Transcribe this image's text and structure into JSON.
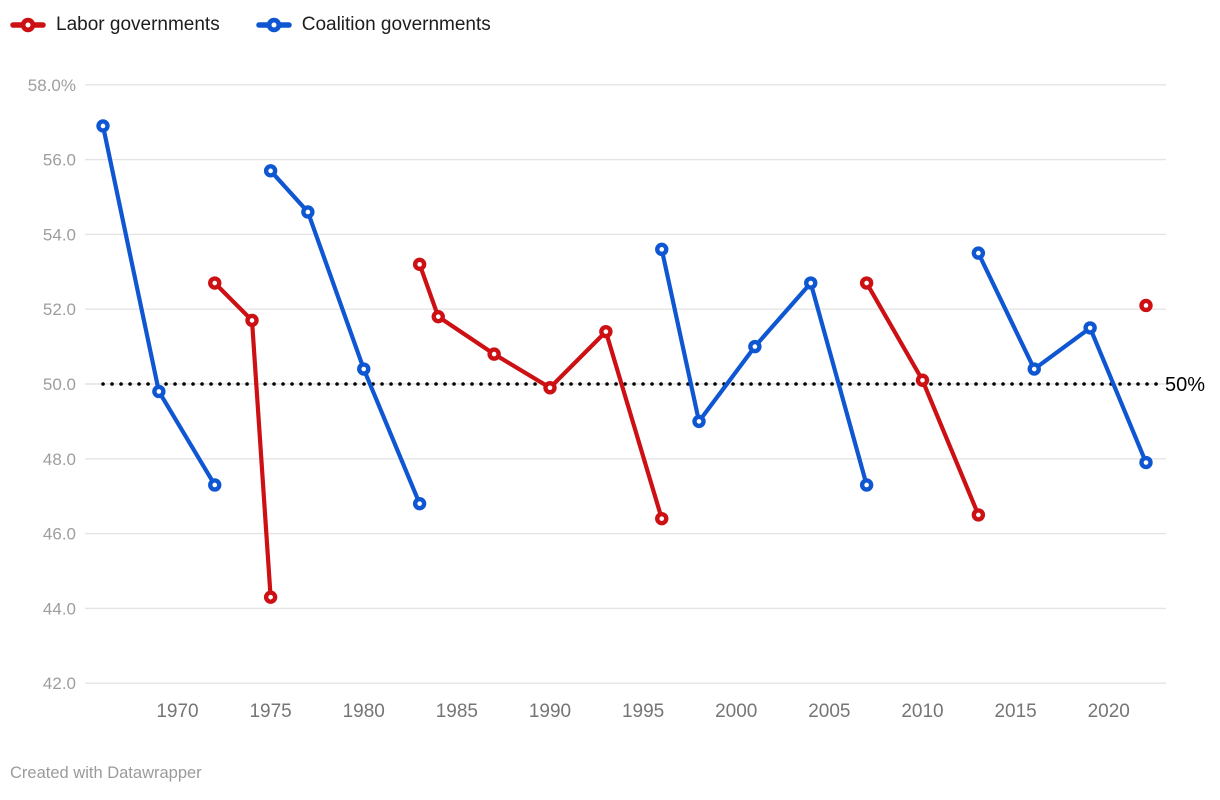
{
  "legend": {
    "items": [
      {
        "id": "labor",
        "label": "Labor governments",
        "color": "#cc1013"
      },
      {
        "id": "coalition",
        "label": "Coalition governments",
        "color": "#0f57d2"
      }
    ]
  },
  "footer": {
    "credit": "Created with Datawrapper"
  },
  "chart_data": {
    "type": "line",
    "title": "",
    "xlabel": "",
    "ylabel": "",
    "legend_position": "top",
    "grid": "horizontal",
    "xlim": [
      1964.8,
      2023.2
    ],
    "ylim": [
      41.5,
      58.5
    ],
    "x_ticks": [
      1970,
      1975,
      1980,
      1985,
      1990,
      1995,
      2000,
      2005,
      2010,
      2015,
      2020
    ],
    "y_ticks": [
      {
        "value": 58,
        "label": "58.0%"
      },
      {
        "value": 56,
        "label": "56.0"
      },
      {
        "value": 54,
        "label": "54.0"
      },
      {
        "value": 52,
        "label": "52.0"
      },
      {
        "value": 50,
        "label": "50.0"
      },
      {
        "value": 48,
        "label": "48.0"
      },
      {
        "value": 46,
        "label": "46.0"
      },
      {
        "value": 44,
        "label": "44.0"
      },
      {
        "value": 42,
        "label": "42.0"
      }
    ],
    "reference_line": {
      "value": 50,
      "label": "50%",
      "style": "dotted",
      "color": "#000000"
    },
    "series": [
      {
        "name": "Labor governments",
        "color": "#cc1013",
        "segments": [
          [
            {
              "year": 1972,
              "value": 52.7
            },
            {
              "year": 1974,
              "value": 51.7
            },
            {
              "year": 1975,
              "value": 44.3
            }
          ],
          [
            {
              "year": 1983,
              "value": 53.2
            },
            {
              "year": 1984,
              "value": 51.8
            },
            {
              "year": 1987,
              "value": 50.8
            },
            {
              "year": 1990,
              "value": 49.9
            },
            {
              "year": 1993,
              "value": 51.4
            },
            {
              "year": 1996,
              "value": 46.4
            }
          ],
          [
            {
              "year": 2007,
              "value": 52.7
            },
            {
              "year": 2010,
              "value": 50.1
            },
            {
              "year": 2013,
              "value": 46.5
            }
          ],
          [
            {
              "year": 2022,
              "value": 52.1
            }
          ]
        ]
      },
      {
        "name": "Coalition governments",
        "color": "#0f57d2",
        "segments": [
          [
            {
              "year": 1966,
              "value": 56.9
            },
            {
              "year": 1969,
              "value": 49.8
            },
            {
              "year": 1972,
              "value": 47.3
            }
          ],
          [
            {
              "year": 1975,
              "value": 55.7
            },
            {
              "year": 1977,
              "value": 54.6
            },
            {
              "year": 1980,
              "value": 50.4
            },
            {
              "year": 1983,
              "value": 46.8
            }
          ],
          [
            {
              "year": 1996,
              "value": 53.6
            },
            {
              "year": 1998,
              "value": 49.0
            },
            {
              "year": 2001,
              "value": 51.0
            },
            {
              "year": 2004,
              "value": 52.7
            },
            {
              "year": 2007,
              "value": 47.3
            }
          ],
          [
            {
              "year": 2013,
              "value": 53.5
            },
            {
              "year": 2016,
              "value": 50.4
            },
            {
              "year": 2019,
              "value": 51.5
            },
            {
              "year": 2022,
              "value": 47.9
            }
          ]
        ]
      }
    ]
  }
}
